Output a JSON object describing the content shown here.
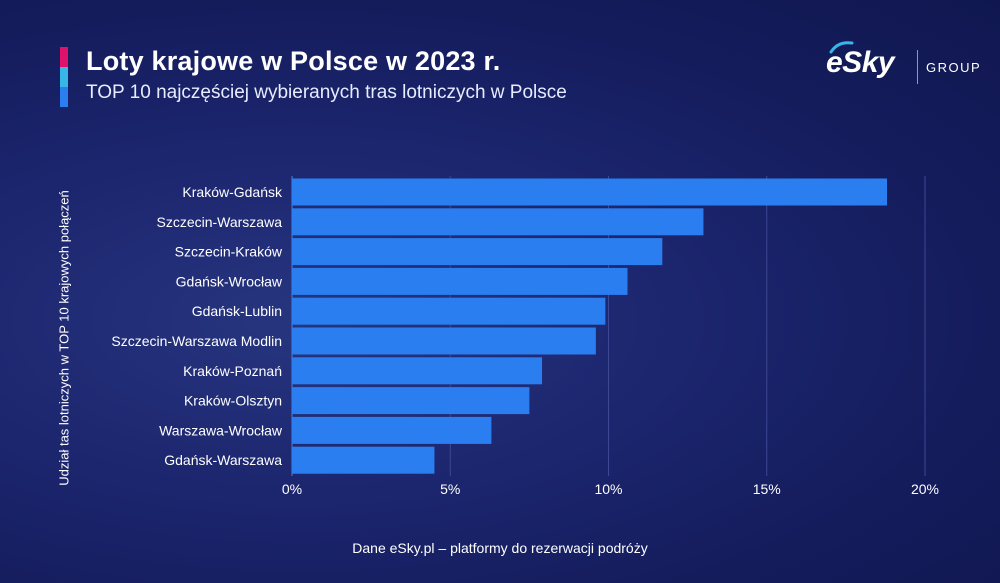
{
  "header": {
    "title": "Loty krajowe w Polsce w 2023 r.",
    "subtitle": "TOP 10 najczęściej wybieranych tras lotniczych w Polsce"
  },
  "logo": {
    "brand": "eSky",
    "group": "GROUP"
  },
  "footer": {
    "source": "Dane eSky.pl – platformy do rezerwacji podróży"
  },
  "colors": {
    "bar": "#2a7ef0",
    "accent_pink": "#e0116b",
    "accent_cyan": "#37b7e8",
    "accent_blue": "#2a7ef0",
    "background": "#1a2368"
  },
  "chart_data": {
    "type": "bar",
    "orientation": "horizontal",
    "title": "",
    "xlabel": "",
    "ylabel": "Udział tas lotniczych w TOP 10 krajowych połączeń",
    "categories": [
      "Kraków-Gdańsk",
      "Szczecin-Warszawa",
      "Szczecin-Kraków",
      "Gdańsk-Wrocław",
      "Gdańsk-Lublin",
      "Szczecin-Warszawa Modlin",
      "Kraków-Poznań",
      "Kraków-Olsztyn",
      "Warszawa-Wrocław",
      "Gdańsk-Warszawa"
    ],
    "values": [
      18.8,
      13.0,
      11.7,
      10.6,
      9.9,
      9.6,
      7.9,
      7.5,
      6.3,
      4.5
    ],
    "xlim": [
      0,
      20
    ],
    "xticks": [
      0,
      5,
      10,
      15,
      20
    ],
    "xtick_labels": [
      "0%",
      "5%",
      "10%",
      "15%",
      "20%"
    ],
    "grid": "vertical",
    "legend": "none"
  }
}
